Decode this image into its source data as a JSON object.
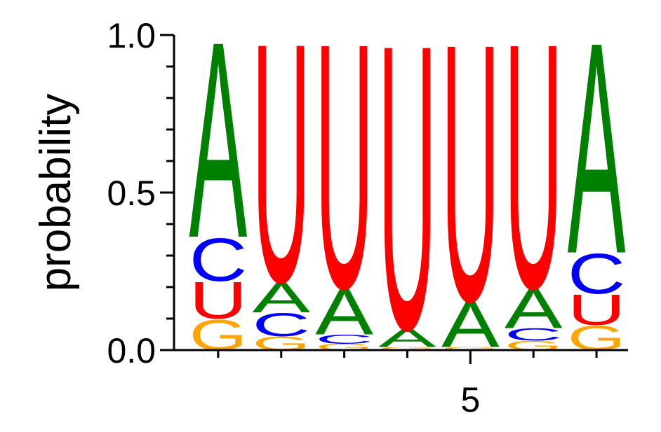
{
  "chart_data": {
    "type": "logo",
    "y_label": "probability",
    "x": [
      1,
      2,
      3,
      4,
      5,
      6,
      7
    ],
    "xlim": [
      0.3,
      7.5
    ],
    "xticks": [
      5
    ],
    "xminorticks": [
      1,
      2,
      3,
      4,
      6,
      7
    ],
    "ylim": [
      0,
      1
    ],
    "yticks": [
      {
        "value": 0,
        "label": "0.0"
      },
      {
        "value": 0.5,
        "label": "0.5"
      },
      {
        "value": 1,
        "label": "1.0"
      }
    ],
    "yminorticks": [
      0.1,
      0.2,
      0.3,
      0.4,
      0.6,
      0.7,
      0.8,
      0.9
    ],
    "series": [
      {
        "name": "A",
        "color": "#008000",
        "values": [
          0.64,
          0.1,
          0.15,
          0.06,
          0.15,
          0.13,
          0.69
        ]
      },
      {
        "name": "C",
        "color": "#0000ff",
        "values": [
          0.14,
          0.075,
          0.03,
          0.0,
          0.0,
          0.04,
          0.13
        ]
      },
      {
        "name": "G",
        "color": "#ffa500",
        "values": [
          0.1,
          0.045,
          0.02,
          0.01,
          0.01,
          0.03,
          0.08
        ]
      },
      {
        "name": "U",
        "color": "#ff0000",
        "values": [
          0.12,
          0.78,
          0.8,
          0.93,
          0.84,
          0.8,
          0.1
        ]
      }
    ]
  }
}
